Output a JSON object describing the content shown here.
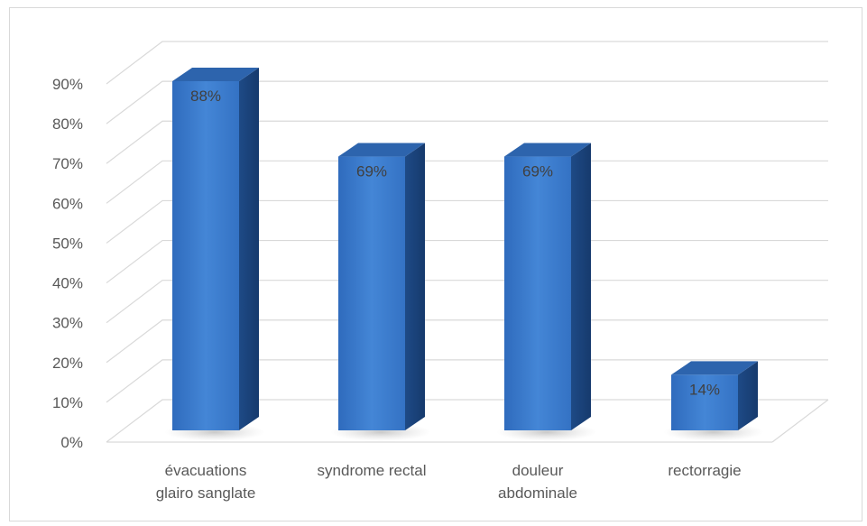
{
  "chart_data": {
    "type": "bar",
    "categories": [
      [
        "évacuations",
        "glairo sanglate"
      ],
      [
        "syndrome rectal"
      ],
      [
        "douleur",
        "abdominale"
      ],
      [
        "rectorragie"
      ]
    ],
    "values": [
      88,
      69,
      69,
      14
    ],
    "data_labels": [
      "88%",
      "69%",
      "69%",
      "14%"
    ],
    "y_ticks": [
      "0%",
      "10%",
      "20%",
      "30%",
      "40%",
      "50%",
      "60%",
      "70%",
      "80%",
      "90%"
    ],
    "ylim": [
      0,
      90
    ],
    "grid": true,
    "three_d": true,
    "colors": {
      "bar_front": "#3a78c9",
      "bar_front_light": "#4a86d4",
      "bar_side": "#1f4e8c",
      "bar_top": "#2d64ad",
      "grid": "#d9d9d9",
      "text": "#595959"
    }
  }
}
